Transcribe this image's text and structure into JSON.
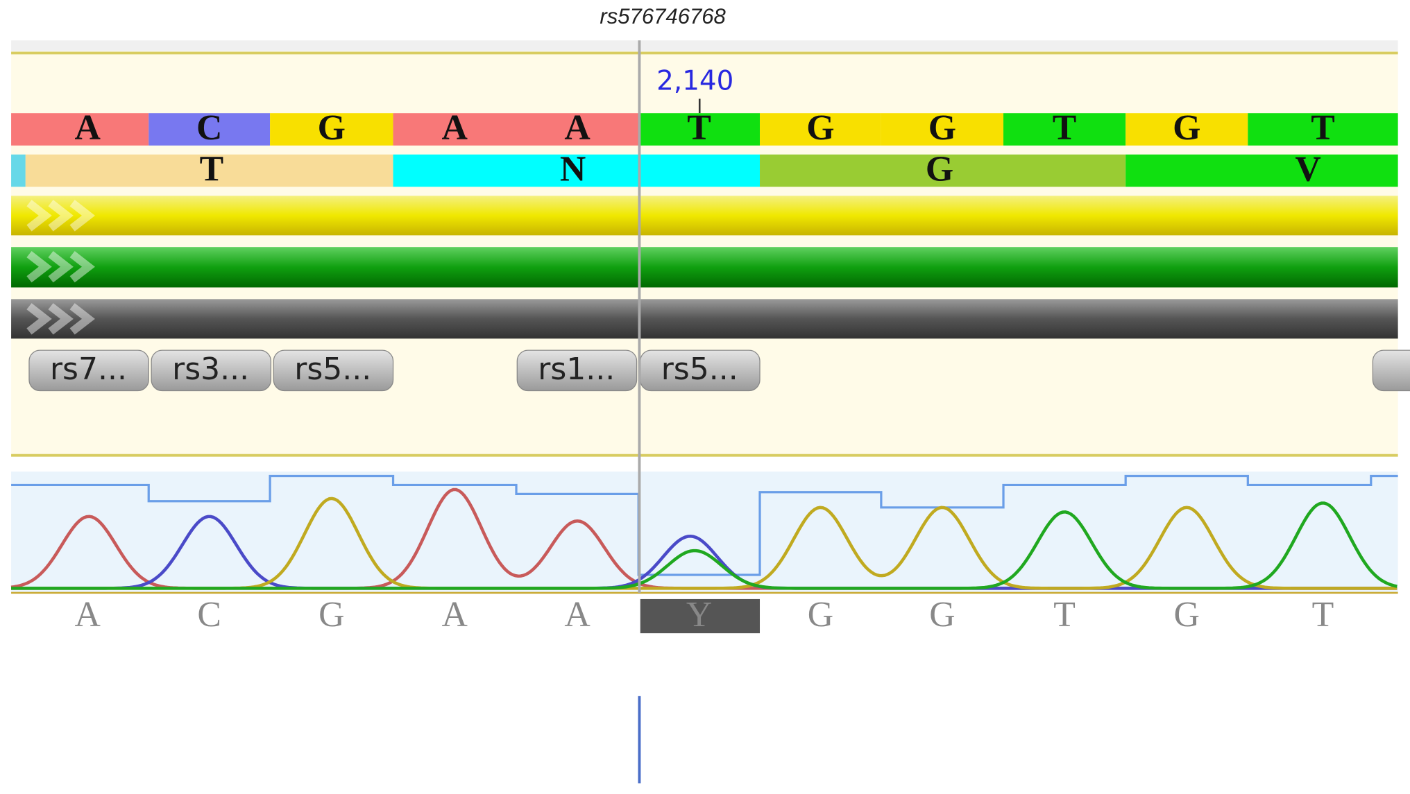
{
  "header": {
    "snp_label": "rs576746768"
  },
  "position_label": "2,140",
  "reference": [
    "A",
    "C",
    "G",
    "A",
    "A",
    "T",
    "G",
    "G",
    "T",
    "G",
    "T"
  ],
  "translation": [
    "T",
    "N",
    "G",
    "V"
  ],
  "snps": [
    "rs7...",
    "rs3...",
    "rs5...",
    "rs1...",
    "rs5..."
  ],
  "basecalls": [
    "A",
    "C",
    "G",
    "A",
    "A",
    "Y",
    "G",
    "G",
    "T",
    "G",
    "T"
  ]
}
